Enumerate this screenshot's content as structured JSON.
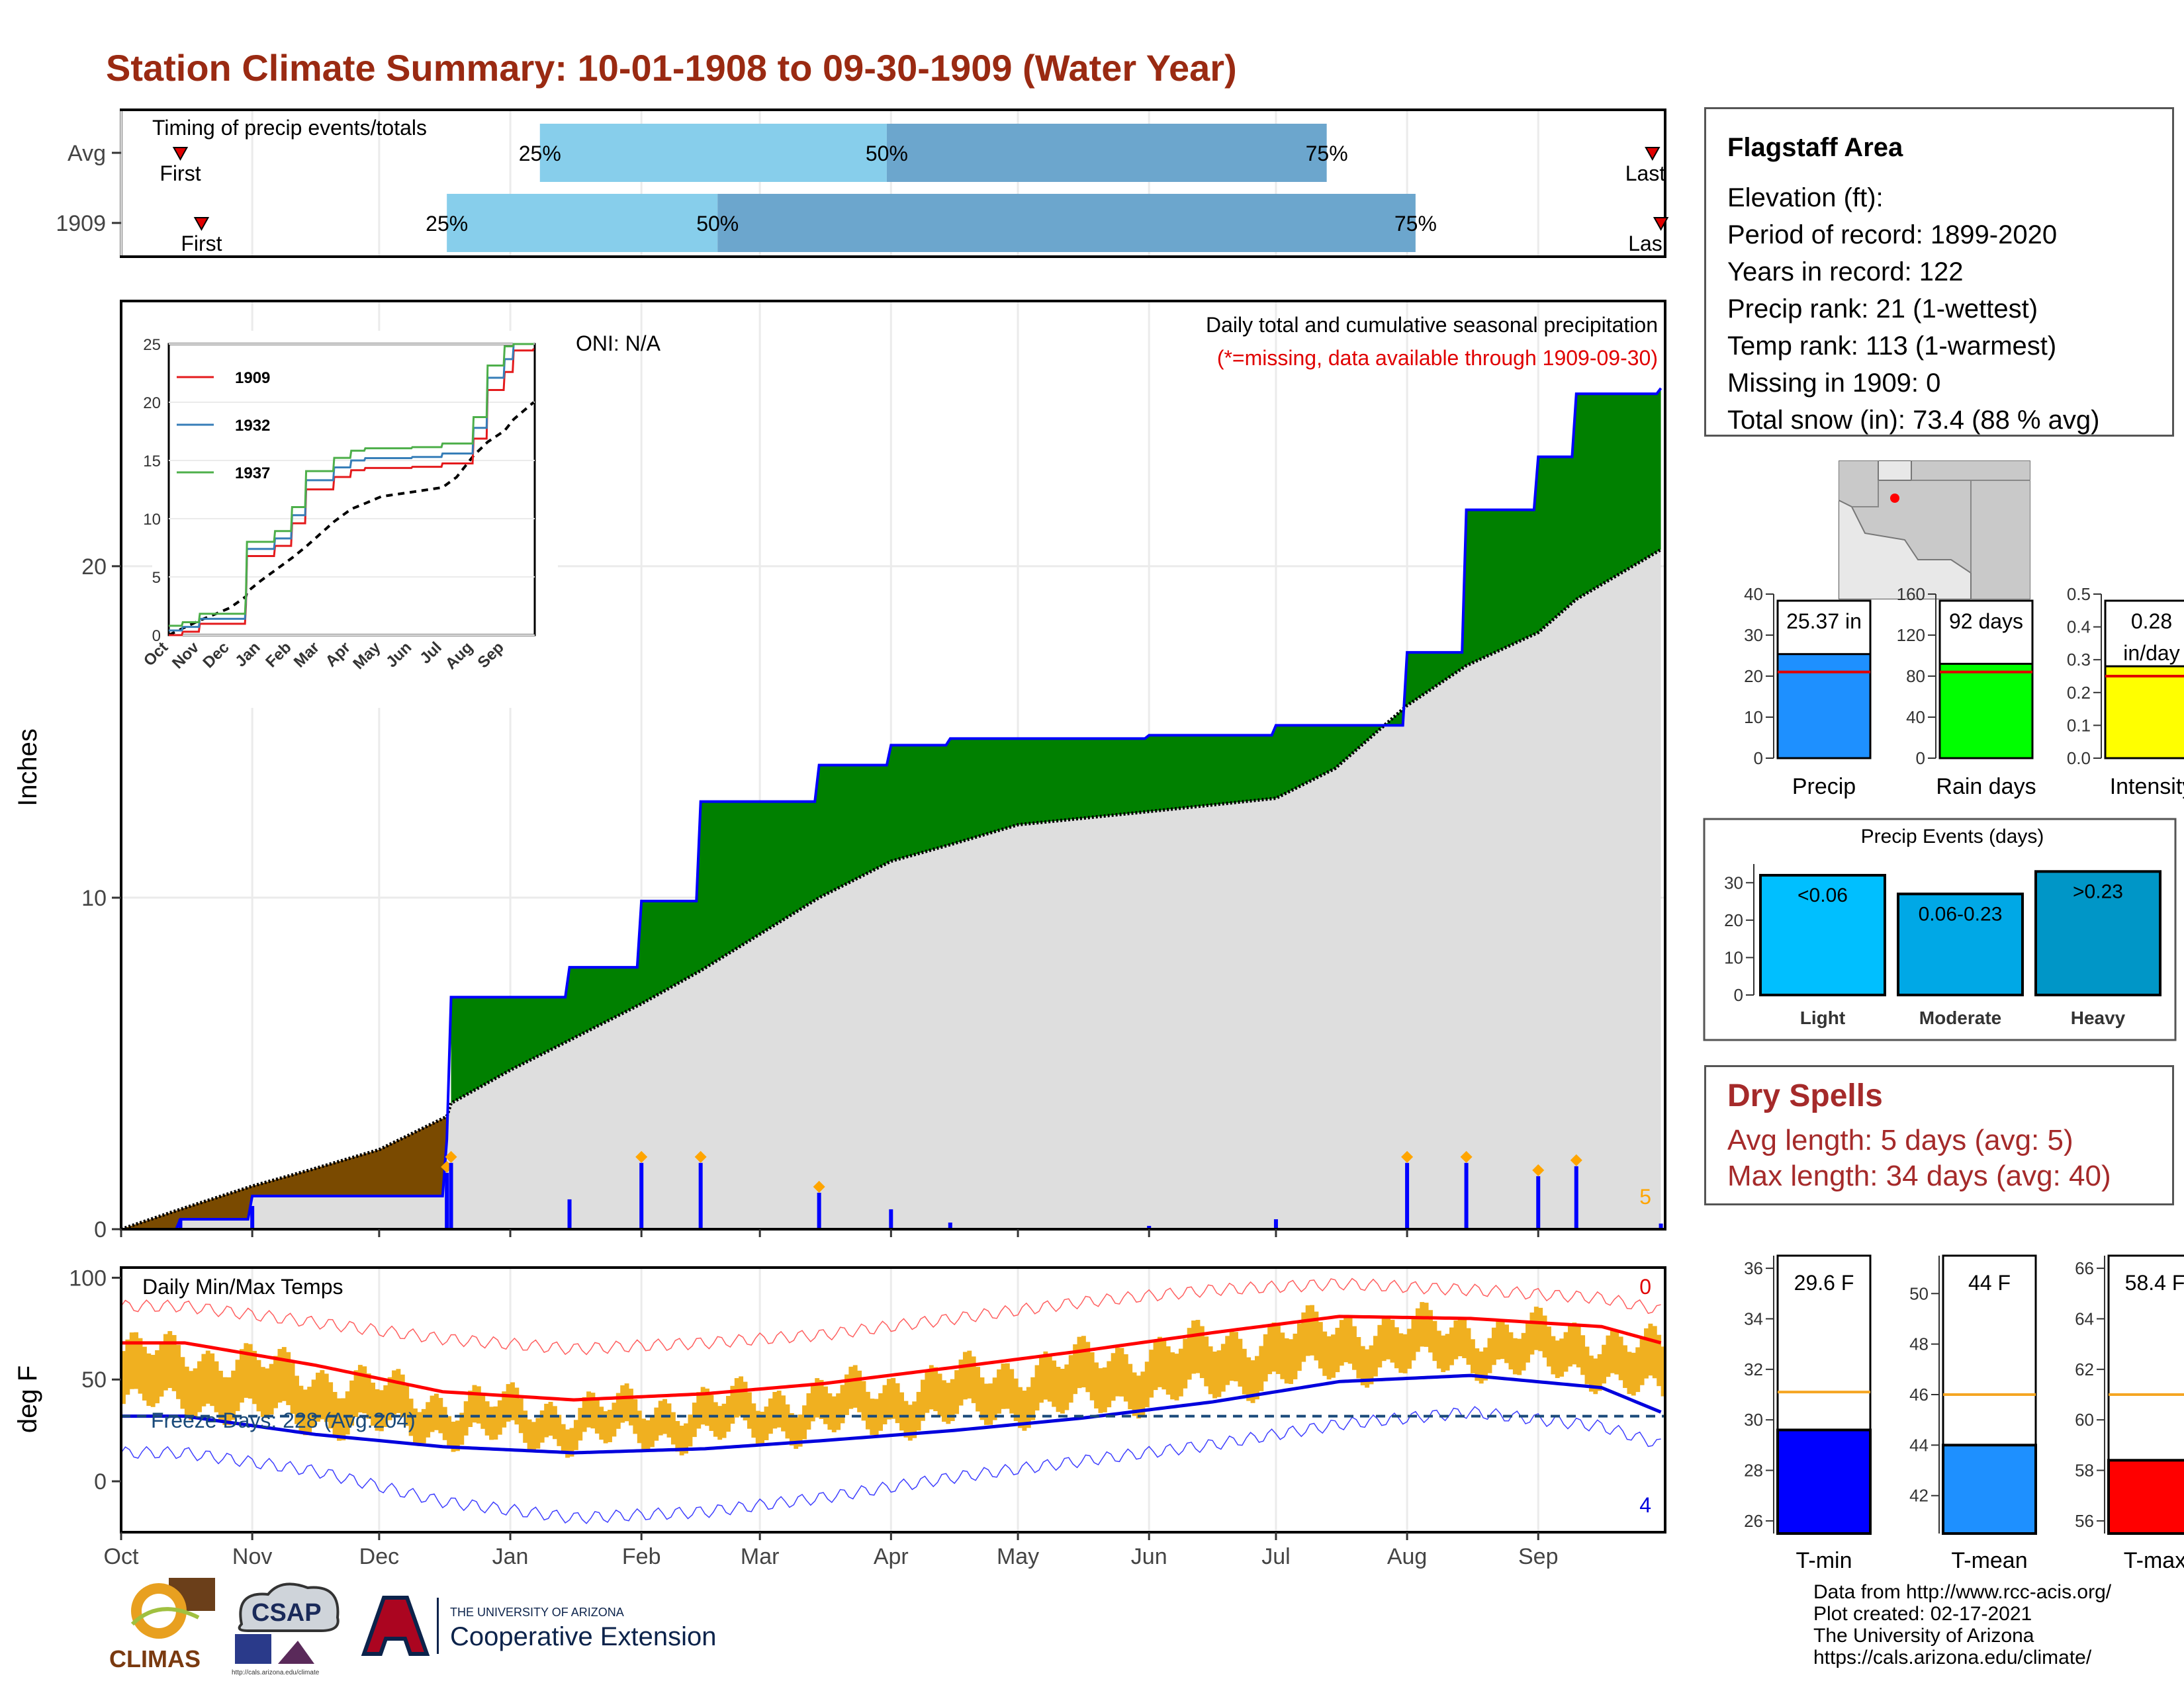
{
  "title": "Station Climate Summary: 10-01-1908 to 09-30-1909 (Water Year)",
  "timing": {
    "label": "Timing of precip events/totals",
    "rows": [
      {
        "name": "Avg",
        "first_label": "First",
        "last_label": "Last",
        "p25_label": "25%",
        "p50_label": "50%",
        "p75_label": "75%",
        "first": "Oct 15",
        "p25": "Jan 8",
        "p50": "Mar 31",
        "p75": "Jul 13",
        "last": "Sep 28"
      },
      {
        "name": "1909",
        "first_label": "First",
        "last_label": "Las",
        "p25_label": "25%",
        "p50_label": "50%",
        "p75_label": "75%",
        "first": "Oct 20",
        "p25": "Dec 17",
        "p50": "Feb 19",
        "p75": "Aug 3",
        "last": "Sep 30"
      }
    ]
  },
  "precip_panel": {
    "ylabel": "Inches",
    "header": "Daily total and cumulative seasonal precipitation",
    "subheader": "(*=missing, data available through 1909-09-30)",
    "oni": "ONI: N/A",
    "corner_count": "5",
    "yticks": [
      "0",
      "10",
      "20"
    ],
    "colors": {
      "above_avg": "#008000",
      "below_avg": "#7a4a00",
      "avg_fill": "#dedede",
      "cum_line": "#0000ff",
      "daily_bar": "#0000ff"
    }
  },
  "inset": {
    "yticks": [
      "0",
      "5",
      "10",
      "15",
      "20",
      "25"
    ],
    "xticks": [
      "Oct",
      "Nov",
      "Dec",
      "Jan",
      "Feb",
      "Mar",
      "Apr",
      "May",
      "Jun",
      "Jul",
      "Aug",
      "Sep"
    ],
    "legend": [
      {
        "name": "1909",
        "color": "#e41a1c"
      },
      {
        "name": "1932",
        "color": "#377eb8"
      },
      {
        "name": "1937",
        "color": "#4daf4a"
      }
    ]
  },
  "temp_panel": {
    "ylabel": "deg F",
    "label": "Daily Min/Max Temps",
    "freeze": "Freeze Days: 228 (Avg:204)",
    "corner_top": "0",
    "corner_bottom": "4",
    "yticks": [
      "0",
      "50",
      "100"
    ]
  },
  "months": [
    "Oct",
    "Nov",
    "Dec",
    "Jan",
    "Feb",
    "Mar",
    "Apr",
    "May",
    "Jun",
    "Jul",
    "Aug",
    "Sep"
  ],
  "info": {
    "station": "Flagstaff Area",
    "elevation": "Elevation (ft):",
    "period": "Period of record: 1899-2020",
    "years": "Years in record: 122",
    "precip_rank": "Precip rank: 21 (1-wettest)",
    "temp_rank": "Temp rank: 113 (1-warmest)",
    "missing": "Missing in 1909: 0",
    "snow": "Total snow (in): 73.4 (88 % avg)"
  },
  "summary_bars": [
    {
      "label": "Precip",
      "value_label": "25.37 in",
      "value": 25.37,
      "avg": 21,
      "max": 40,
      "ticks": [
        "0",
        "10",
        "20",
        "30",
        "40"
      ],
      "color": "#1e90ff"
    },
    {
      "label": "Rain days",
      "value_label": "92 days",
      "value": 92,
      "avg": 84,
      "max": 160,
      "ticks": [
        "0",
        "40",
        "80",
        "120",
        "160"
      ],
      "color": "#00ff00"
    },
    {
      "label": "Intensity",
      "value_label": "0.28",
      "value_label2": "in/day",
      "value": 0.28,
      "avg": 0.25,
      "max": 0.5,
      "ticks": [
        "0.0",
        "0.1",
        "0.2",
        "0.3",
        "0.4",
        "0.5"
      ],
      "color": "#ffff00"
    }
  ],
  "events": {
    "title": "Precip Events (days)",
    "ticks": [
      "0",
      "10",
      "20",
      "30"
    ],
    "bars": [
      {
        "label": "Light",
        "value_label": "<0.06",
        "value": 32,
        "color": "#00bfff"
      },
      {
        "label": "Moderate",
        "value_label": "0.06-0.23",
        "value": 27,
        "color": "#00a8e6"
      },
      {
        "label": "Heavy",
        "value_label": ">0.23",
        "value": 33,
        "color": "#0096c7"
      }
    ]
  },
  "dry_spells": {
    "title": "Dry Spells",
    "avg": "Avg length: 5 days (avg: 5)",
    "max": "Max length: 34 days (avg: 40)"
  },
  "temp_bars": [
    {
      "label": "T-min",
      "value_label": "29.6 F",
      "value": 29.6,
      "avg": 31.1,
      "min": 25.5,
      "max": 36.5,
      "ticks": [
        "26",
        "28",
        "30",
        "32",
        "34",
        "36"
      ],
      "color": "#0000ff"
    },
    {
      "label": "T-mean",
      "value_label": "44 F",
      "value": 44.0,
      "avg": 46.0,
      "min": 40.5,
      "max": 51.5,
      "ticks": [
        "42",
        "44",
        "46",
        "48",
        "50"
      ],
      "color": "#1e90ff"
    },
    {
      "label": "T-max",
      "value_label": "58.4 F",
      "value": 58.4,
      "avg": 61.0,
      "min": 55.5,
      "max": 66.5,
      "ticks": [
        "56",
        "58",
        "60",
        "62",
        "64",
        "66"
      ],
      "color": "#ff0000"
    }
  ],
  "credits": [
    "Data from http://www.rcc-acis.org/",
    "Plot created: 02-17-2021",
    "The University of Arizona",
    "https://cals.arizona.edu/climate/"
  ],
  "logos": {
    "climas": "CLIMAS",
    "csap": "CSAP",
    "csap_url": "http://cals.arizona.edu/climate",
    "ua_small": "THE UNIVERSITY OF ARIZONA",
    "ua_big": "Cooperative Extension"
  },
  "chart_data": [
    {
      "type": "area",
      "title": "Daily total and cumulative seasonal precipitation",
      "ylabel": "Inches",
      "ylim": [
        0,
        28
      ],
      "x": [
        "Oct 1",
        "Oct 15",
        "Nov 1",
        "Nov 15",
        "Dec 1",
        "Dec 17",
        "Dec 18",
        "Jan 1",
        "Jan 15",
        "Feb 1",
        "Feb 15",
        "Mar 1",
        "Mar 15",
        "Apr 1",
        "Apr 15",
        "May 1",
        "Jun 1",
        "Jul 1",
        "Jul 15",
        "Aug 1",
        "Aug 15",
        "Sep 1",
        "Sep 10",
        "Sep 30"
      ],
      "series": [
        {
          "name": "1909",
          "values": [
            0.0,
            0.3,
            1.0,
            1.0,
            1.0,
            2.7,
            7.0,
            7.0,
            7.9,
            9.9,
            12.9,
            12.9,
            14.0,
            14.6,
            14.8,
            14.8,
            14.9,
            15.2,
            15.2,
            17.4,
            21.7,
            23.3,
            25.2,
            25.37
          ]
        },
        {
          "name": "Avg",
          "values": [
            0.0,
            0.6,
            1.3,
            1.8,
            2.4,
            3.4,
            3.8,
            4.8,
            5.7,
            6.8,
            7.8,
            8.9,
            10.0,
            11.1,
            11.6,
            12.2,
            12.6,
            13.0,
            13.9,
            15.8,
            17.0,
            18.0,
            19.0,
            20.5
          ]
        }
      ]
    },
    {
      "type": "line",
      "title": "Daily Min/Max Temps",
      "ylabel": "deg F",
      "ylim": [
        -25,
        105
      ],
      "x": [
        "Oct",
        "Nov",
        "Dec",
        "Jan",
        "Feb",
        "Mar",
        "Apr",
        "May",
        "Jun",
        "Jul",
        "Aug",
        "Sep",
        "Sep 30"
      ],
      "series": [
        {
          "name": "Avg max",
          "values": [
            68,
            57,
            44,
            40,
            43,
            48,
            56,
            64,
            73,
            81,
            80,
            76,
            68
          ]
        },
        {
          "name": "Avg min",
          "values": [
            32,
            23,
            17,
            14,
            16,
            20,
            25,
            31,
            39,
            49,
            52,
            46,
            34
          ]
        },
        {
          "name": "Record max",
          "values": [
            86,
            78,
            70,
            65,
            68,
            72,
            80,
            88,
            94,
            97,
            94,
            90,
            84
          ]
        },
        {
          "name": "Record min",
          "values": [
            14,
            5,
            -10,
            -18,
            -15,
            -8,
            2,
            10,
            18,
            28,
            34,
            27,
            18
          ]
        }
      ]
    }
  ]
}
